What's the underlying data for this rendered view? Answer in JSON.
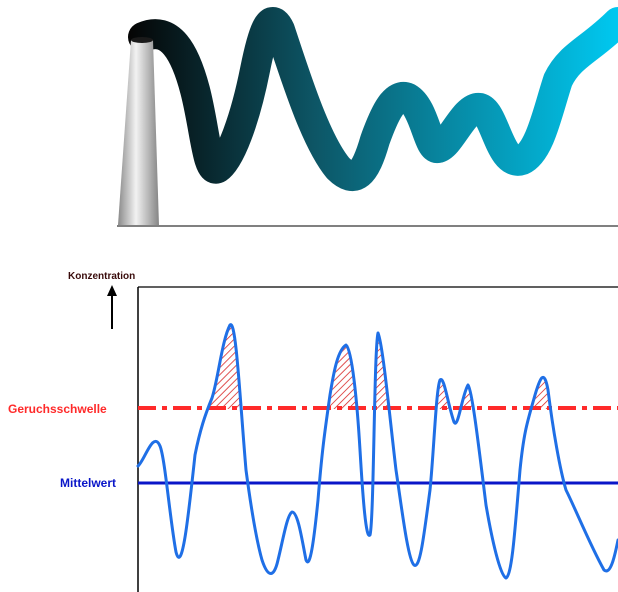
{
  "labels": {
    "concentration": "Konzentration",
    "odor_threshold": "Geruchsschwelle",
    "mean_value": "Mittelwert"
  },
  "colors": {
    "plume_start": "#050505",
    "plume_mid": "#0d5666",
    "plume_end": "#00c8f0",
    "chimney_light": "#f2f2f2",
    "chimney_dark": "#8a8a8a",
    "signal": "#1f6fe6",
    "threshold": "#ff2a2a",
    "hatch": "#d61a1a",
    "mean": "#0a16c8",
    "axis": "#000000",
    "concentration_label": "#3a0c0c"
  }
}
